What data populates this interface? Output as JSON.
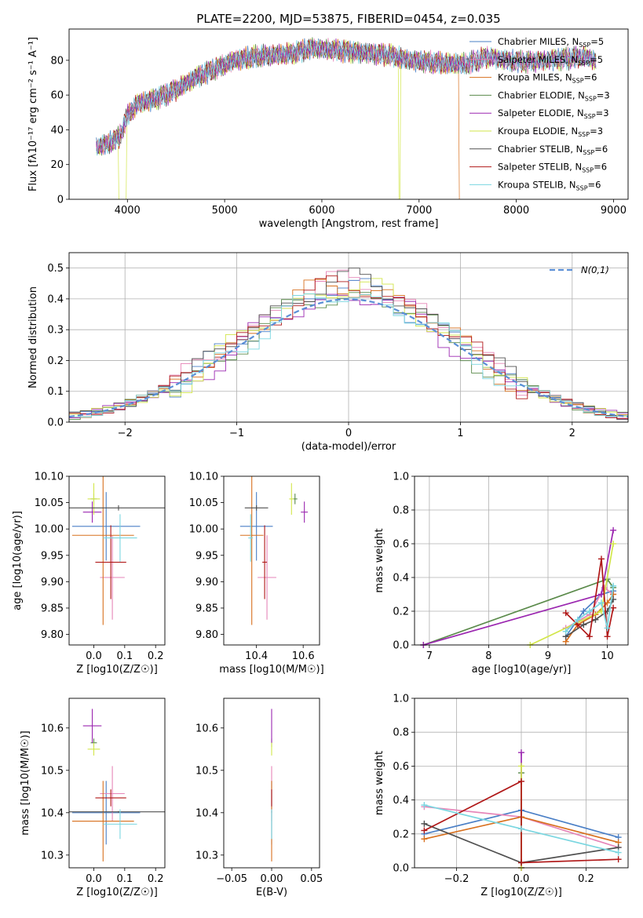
{
  "series_styles": [
    {
      "label": "Chabrier MILES, N",
      "sub": "SSP",
      "tail": "=5",
      "color": "#4a7fc6"
    },
    {
      "label": "Salpeter MILES, N",
      "sub": "SSP",
      "tail": "=5",
      "color": "#e685b8"
    },
    {
      "label": "Kroupa MILES, N",
      "sub": "SSP",
      "tail": "=6",
      "color": "#d8701e"
    },
    {
      "label": "Chabrier ELODIE, N",
      "sub": "SSP",
      "tail": "=3",
      "color": "#5a8a4a"
    },
    {
      "label": "Salpeter ELODIE, N",
      "sub": "SSP",
      "tail": "=3",
      "color": "#9b27b0"
    },
    {
      "label": "Kroupa ELODIE, N",
      "sub": "SSP",
      "tail": "=3",
      "color": "#d2e64a"
    },
    {
      "label": "Chabrier STELIB, N",
      "sub": "SSP",
      "tail": "=6",
      "color": "#505050"
    },
    {
      "label": "Salpeter STELIB, N",
      "sub": "SSP",
      "tail": "=6",
      "color": "#b01818"
    },
    {
      "label": "Kroupa STELIB, N",
      "sub": "SSP",
      "tail": "=6",
      "color": "#7ad6e0"
    }
  ],
  "chart_data": [
    {
      "type": "line",
      "panel": "spectrum",
      "title": "PLATE=2200, MJD=53875, FIBERID=0454, z=0.035",
      "xlabel": "wavelength [Angstrom, rest frame]",
      "ylabel": "Flux [fλ10⁻¹⁷ erg cm⁻² s⁻¹ A⁻¹]",
      "xlim": [
        3400,
        9150
      ],
      "ylim": [
        0,
        98
      ],
      "xticks": [
        4000,
        5000,
        6000,
        7000,
        8000,
        9000
      ],
      "yticks": [
        0,
        20,
        40,
        60,
        80
      ],
      "continuum": [
        [
          3680,
          30
        ],
        [
          3800,
          32
        ],
        [
          3920,
          36
        ],
        [
          4000,
          48
        ],
        [
          4100,
          55
        ],
        [
          4300,
          58
        ],
        [
          4500,
          63
        ],
        [
          4700,
          70
        ],
        [
          4900,
          75
        ],
        [
          5100,
          80
        ],
        [
          5300,
          82
        ],
        [
          5500,
          83
        ],
        [
          5700,
          84
        ],
        [
          5900,
          87
        ],
        [
          6100,
          86
        ],
        [
          6300,
          85
        ],
        [
          6500,
          84
        ],
        [
          6700,
          83
        ],
        [
          6900,
          80
        ],
        [
          7100,
          79
        ],
        [
          7300,
          78
        ],
        [
          7500,
          78
        ],
        [
          7700,
          82
        ],
        [
          7900,
          80
        ],
        [
          8100,
          79
        ],
        [
          8300,
          80
        ],
        [
          8500,
          81
        ],
        [
          8700,
          82
        ],
        [
          8820,
          80
        ]
      ],
      "dropouts": [
        {
          "x": 3920,
          "series": 5
        },
        {
          "x": 6800,
          "series": 5
        },
        {
          "x": 7420,
          "series": 2
        }
      ]
    },
    {
      "type": "line",
      "panel": "residuals",
      "xlabel": "(data-model)/error",
      "ylabel": "Normed distribution",
      "xlim": [
        -2.5,
        2.5
      ],
      "ylim": [
        0,
        0.55
      ],
      "xticks": [
        -2,
        -1,
        0,
        1,
        2
      ],
      "yticks": [
        0.0,
        0.1,
        0.2,
        0.3,
        0.4,
        0.5
      ],
      "grid": true,
      "legend": "N(0,1)",
      "legend_position": "top-right",
      "bin_width": 0.1,
      "gaussian": {
        "mu": 0,
        "sigma": 1
      }
    },
    {
      "type": "scatter",
      "panel": "age-vs-Z",
      "xlabel": "Z [log10(Z/Z☉)]",
      "ylabel": "age [log10(age/yr)]",
      "xlim": [
        -0.08,
        0.23
      ],
      "ylim": [
        9.78,
        10.1
      ],
      "xticks": [
        0.0,
        0.1,
        0.2
      ],
      "yticks": [
        9.8,
        9.85,
        9.9,
        9.95,
        10.0,
        10.05,
        10.1
      ],
      "points": [
        {
          "x": 0.04,
          "xerr": 0.11,
          "y": 10.005,
          "yerr": 0.065,
          "series": 0
        },
        {
          "x": 0.06,
          "xerr": 0.04,
          "y": 9.908,
          "yerr": 0.08,
          "series": 1
        },
        {
          "x": 0.03,
          "xerr": 0.1,
          "y": 9.988,
          "yerr": 0.17,
          "series": 2
        },
        {
          "x": 0.0,
          "xerr": 0.01,
          "y": 10.057,
          "yerr": 0.01,
          "series": 3
        },
        {
          "x": -0.005,
          "xerr": 0.03,
          "y": 10.032,
          "yerr": 0.02,
          "series": 4
        },
        {
          "x": 0.0,
          "xerr": 0.02,
          "y": 10.057,
          "yerr": 0.03,
          "series": 5
        },
        {
          "x": 0.08,
          "xerr": 0.22,
          "y": 10.04,
          "yerr": 0.005,
          "series": 6
        },
        {
          "x": 0.055,
          "xerr": 0.05,
          "y": 9.937,
          "yerr": 0.07,
          "series": 7
        },
        {
          "x": 0.085,
          "xerr": 0.055,
          "y": 9.983,
          "yerr": 0.045,
          "series": 8
        }
      ]
    },
    {
      "type": "scatter",
      "panel": "age-vs-mass",
      "xlabel": "mass [log10(M/M☉)]",
      "xlim": [
        10.26,
        10.67
      ],
      "ylim": [
        9.78,
        10.1
      ],
      "xticks": [
        10.4,
        10.6
      ],
      "yticks": [
        9.8,
        9.85,
        9.9,
        9.95,
        10.0,
        10.05,
        10.1
      ],
      "points": [
        {
          "x": 10.4,
          "xerr": 0.07,
          "y": 10.005,
          "yerr": 0.065,
          "series": 0
        },
        {
          "x": 10.445,
          "xerr": 0.04,
          "y": 9.908,
          "yerr": 0.08,
          "series": 1
        },
        {
          "x": 10.38,
          "xerr": 0.05,
          "y": 9.988,
          "yerr": 0.17,
          "series": 2
        },
        {
          "x": 10.565,
          "xerr": 0.01,
          "y": 10.057,
          "yerr": 0.01,
          "series": 3
        },
        {
          "x": 10.605,
          "xerr": 0.015,
          "y": 10.032,
          "yerr": 0.02,
          "series": 4
        },
        {
          "x": 10.55,
          "xerr": 0.01,
          "y": 10.057,
          "yerr": 0.03,
          "series": 5
        },
        {
          "x": 10.4,
          "xerr": 0.05,
          "y": 10.04,
          "yerr": 0.005,
          "series": 6
        },
        {
          "x": 10.435,
          "xerr": 0.01,
          "y": 9.937,
          "yerr": 0.07,
          "series": 7
        },
        {
          "x": 10.375,
          "xerr": 0.01,
          "y": 9.983,
          "yerr": 0.045,
          "series": 8
        }
      ]
    },
    {
      "type": "line",
      "panel": "mass-weight-vs-age",
      "xlabel": "age [log10(age/yr)]",
      "ylabel": "mass weight",
      "xlim": [
        6.75,
        10.35
      ],
      "ylim": [
        0,
        1.0
      ],
      "xticks": [
        7,
        8,
        9,
        10
      ],
      "yticks": [
        0.0,
        0.2,
        0.4,
        0.6,
        0.8,
        1.0
      ],
      "grid": true,
      "series": [
        {
          "series": 0,
          "x": [
            9.3,
            9.6,
            9.9,
            10.1
          ],
          "y": [
            0.05,
            0.2,
            0.3,
            0.32
          ]
        },
        {
          "series": 1,
          "x": [
            9.3,
            9.7,
            9.95,
            10.1
          ],
          "y": [
            0.1,
            0.18,
            0.34,
            0.3
          ]
        },
        {
          "series": 2,
          "x": [
            9.3,
            9.5,
            9.8,
            10.0,
            10.1
          ],
          "y": [
            0.02,
            0.12,
            0.18,
            0.25,
            0.3
          ]
        },
        {
          "series": 3,
          "x": [
            6.9,
            10.0,
            10.1
          ],
          "y": [
            0.0,
            0.39,
            0.34
          ]
        },
        {
          "series": 4,
          "x": [
            6.9,
            9.9,
            10.1
          ],
          "y": [
            0.0,
            0.3,
            0.68
          ]
        },
        {
          "series": 5,
          "x": [
            8.7,
            9.9,
            10.1
          ],
          "y": [
            0.0,
            0.2,
            0.6
          ]
        },
        {
          "series": 6,
          "x": [
            9.3,
            9.6,
            9.8,
            10.0,
            10.1
          ],
          "y": [
            0.05,
            0.12,
            0.15,
            0.2,
            0.27
          ]
        },
        {
          "series": 7,
          "x": [
            9.3,
            9.5,
            9.7,
            9.9,
            10.0,
            10.1
          ],
          "y": [
            0.19,
            0.12,
            0.05,
            0.51,
            0.05,
            0.22
          ]
        },
        {
          "series": 8,
          "x": [
            9.3,
            9.5,
            9.7,
            9.9,
            10.0,
            10.1
          ],
          "y": [
            0.08,
            0.15,
            0.2,
            0.25,
            0.1,
            0.35
          ]
        }
      ]
    },
    {
      "type": "scatter",
      "panel": "mass-vs-Z",
      "xlabel": "Z [log10(Z/Z☉)]",
      "ylabel": "mass [log10(M/M☉)]",
      "xlim": [
        -0.08,
        0.23
      ],
      "ylim": [
        10.27,
        10.67
      ],
      "xticks": [
        0.0,
        0.1,
        0.2
      ],
      "yticks": [
        10.3,
        10.4,
        10.5,
        10.6
      ],
      "points": [
        {
          "x": 0.04,
          "xerr": 0.11,
          "y": 10.4,
          "yerr": 0.075,
          "series": 0
        },
        {
          "x": 0.06,
          "xerr": 0.04,
          "y": 10.445,
          "yerr": 0.065,
          "series": 1
        },
        {
          "x": 0.03,
          "xerr": 0.1,
          "y": 10.38,
          "yerr": 0.095,
          "series": 2
        },
        {
          "x": 0.0,
          "xerr": 0.01,
          "y": 10.565,
          "yerr": 0.01,
          "series": 3
        },
        {
          "x": -0.005,
          "xerr": 0.03,
          "y": 10.605,
          "yerr": 0.04,
          "series": 4
        },
        {
          "x": 0.0,
          "xerr": 0.02,
          "y": 10.55,
          "yerr": 0.015,
          "series": 5
        },
        {
          "x": 0.08,
          "xerr": 0.22,
          "y": 10.402,
          "yerr": 0.002,
          "series": 6
        },
        {
          "x": 0.055,
          "xerr": 0.05,
          "y": 10.435,
          "yerr": 0.02,
          "series": 7
        },
        {
          "x": 0.085,
          "xerr": 0.055,
          "y": 10.373,
          "yerr": 0.035,
          "series": 8
        }
      ]
    },
    {
      "type": "scatter",
      "panel": "mass-vs-ebv",
      "xlabel": "E(B-V)",
      "xlim": [
        -0.06,
        0.06
      ],
      "ylim": [
        10.27,
        10.67
      ],
      "xticks": [
        -0.05,
        0.0,
        0.05
      ],
      "yticks": [
        10.3,
        10.4,
        10.5,
        10.6
      ],
      "points": [
        {
          "x": 0,
          "xerr": 0,
          "y": 10.4,
          "yerr": 0.075,
          "series": 0
        },
        {
          "x": 0,
          "xerr": 0,
          "y": 10.445,
          "yerr": 0.065,
          "series": 1
        },
        {
          "x": 0,
          "xerr": 0,
          "y": 10.38,
          "yerr": 0.095,
          "series": 2
        },
        {
          "x": 0,
          "xerr": 0,
          "y": 10.565,
          "yerr": 0.01,
          "series": 3
        },
        {
          "x": 0,
          "xerr": 0,
          "y": 10.605,
          "yerr": 0.04,
          "series": 4
        },
        {
          "x": 0,
          "xerr": 0,
          "y": 10.55,
          "yerr": 0.015,
          "series": 5
        },
        {
          "x": 0,
          "xerr": 0,
          "y": 10.402,
          "yerr": 0.002,
          "series": 6
        },
        {
          "x": 0,
          "xerr": 0,
          "y": 10.435,
          "yerr": 0.02,
          "series": 7
        },
        {
          "x": 0,
          "xerr": 0,
          "y": 10.373,
          "yerr": 0.035,
          "series": 8
        }
      ]
    },
    {
      "type": "line",
      "panel": "mass-weight-vs-Z",
      "xlabel": "Z [log10(Z/Z☉)]",
      "ylabel": "mass weight",
      "xlim": [
        -0.33,
        0.33
      ],
      "ylim": [
        0,
        1.0
      ],
      "xticks": [
        -0.2,
        0.0,
        0.2
      ],
      "yticks": [
        0.0,
        0.2,
        0.4,
        0.6,
        0.8,
        1.0
      ],
      "grid": true,
      "series": [
        {
          "series": 0,
          "x": [
            -0.3,
            0.0,
            0.3
          ],
          "y": [
            0.2,
            0.34,
            0.18
          ]
        },
        {
          "series": 1,
          "x": [
            -0.3,
            0.0,
            0.3
          ],
          "y": [
            0.36,
            0.3,
            0.12
          ]
        },
        {
          "series": 2,
          "x": [
            -0.3,
            0.0,
            0.3
          ],
          "y": [
            0.17,
            0.3,
            0.15
          ]
        },
        {
          "series": 3,
          "x": [
            0.0,
            0.0
          ],
          "y": [
            0.0,
            0.56
          ]
        },
        {
          "series": 4,
          "x": [
            0.0,
            0.0
          ],
          "y": [
            0.0,
            0.68
          ]
        },
        {
          "series": 5,
          "x": [
            0.0,
            0.0
          ],
          "y": [
            0.0,
            0.6
          ]
        },
        {
          "series": 6,
          "x": [
            -0.3,
            0.0,
            0.3
          ],
          "y": [
            0.26,
            0.03,
            0.12
          ]
        },
        {
          "series": 7,
          "x": [
            -0.3,
            0.0,
            0.0,
            0.3
          ],
          "y": [
            0.22,
            0.51,
            0.03,
            0.05
          ]
        },
        {
          "series": 8,
          "x": [
            -0.3,
            0.0,
            0.3
          ],
          "y": [
            0.37,
            0.23,
            0.09
          ]
        }
      ]
    }
  ]
}
